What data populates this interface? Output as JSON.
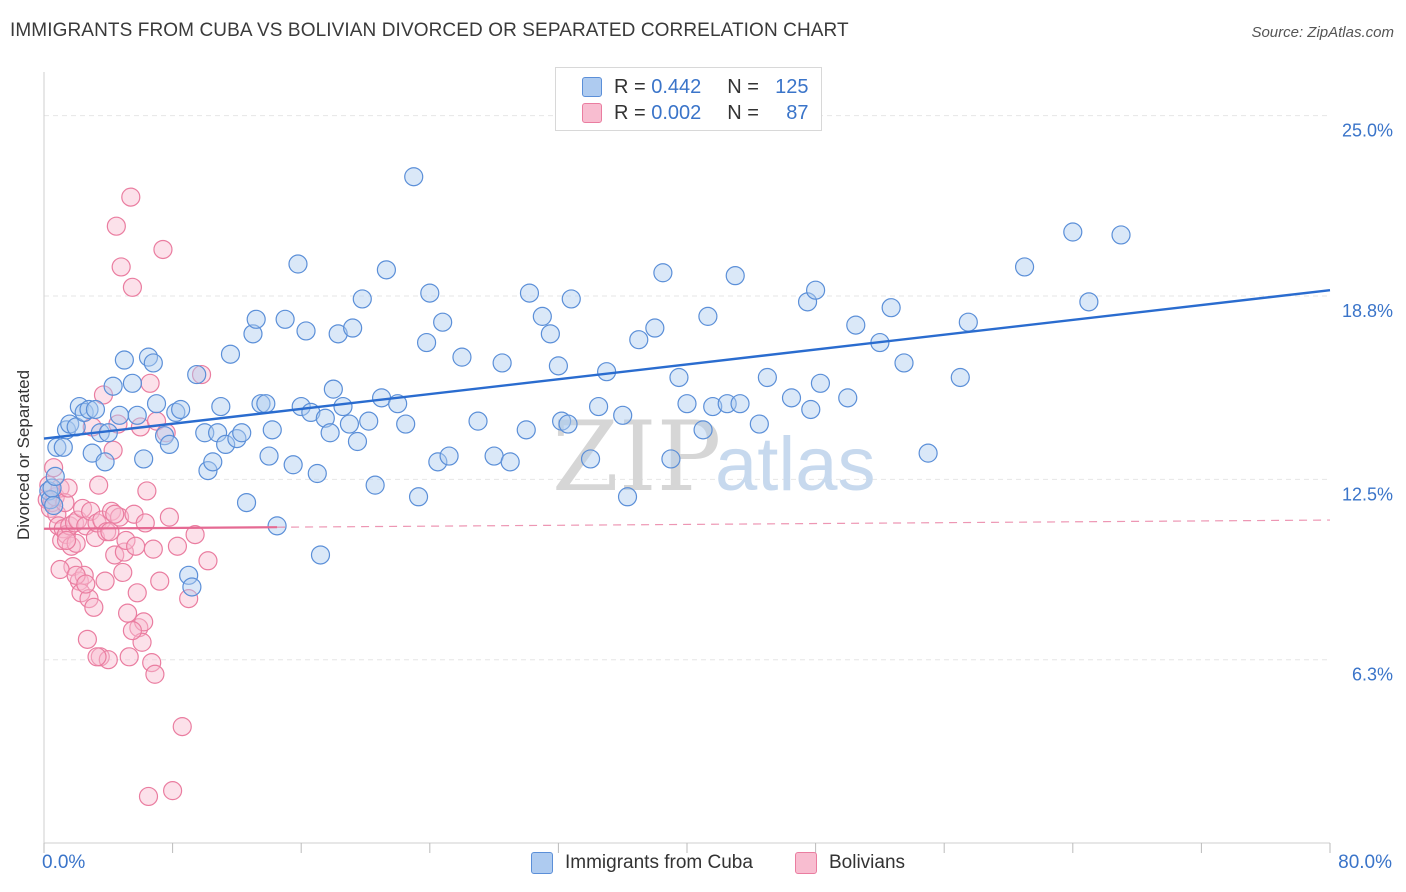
{
  "title": "IMMIGRANTS FROM CUBA VS BOLIVIAN DIVORCED OR SEPARATED CORRELATION CHART",
  "source": "Source: ZipAtlas.com",
  "watermark": {
    "zip": "ZIP",
    "atlas": "atlas"
  },
  "legend": {
    "rows": [
      {
        "r_label": "R =",
        "r_value": "0.442",
        "n_label": "N =",
        "n_value": "125"
      },
      {
        "r_label": "R =",
        "r_value": "0.002",
        "n_label": "N =",
        "n_value": "87"
      }
    ]
  },
  "colors": {
    "blue_fill": "#aecbf0",
    "blue_stroke": "#5b8fd8",
    "blue_line": "#2a6ccf",
    "pink_fill": "#f8bdd0",
    "pink_stroke": "#ea7da0",
    "pink_line": "#e56a93",
    "axis_label": "#3a74c9",
    "grid": "#e6e6e6"
  },
  "chart_data": {
    "type": "scatter",
    "title": "IMMIGRANTS FROM CUBA VS BOLIVIAN DIVORCED OR SEPARATED CORRELATION CHART",
    "xlabel": "",
    "ylabel": "Divorced or Separated",
    "xlim": [
      0,
      80
    ],
    "ylim": [
      0,
      26.5
    ],
    "x_tick_labels": [
      "0.0%",
      "80.0%"
    ],
    "y_ticks": [
      6.3,
      12.5,
      18.8,
      25.0
    ],
    "y_tick_labels": [
      "6.3%",
      "12.5%",
      "18.8%",
      "25.0%"
    ],
    "series": [
      {
        "name": "Immigrants from Cuba",
        "r": 0.442,
        "n": 125,
        "trend": {
          "x0": 0,
          "y0": 13.9,
          "x1": 80,
          "y1": 19.0,
          "dashed_from": null
        },
        "points": [
          [
            0.3,
            12.1
          ],
          [
            0.4,
            11.8
          ],
          [
            0.5,
            12.2
          ],
          [
            0.6,
            11.6
          ],
          [
            0.7,
            12.6
          ],
          [
            0.8,
            13.6
          ],
          [
            1.2,
            13.6
          ],
          [
            1.4,
            14.2
          ],
          [
            1.6,
            14.4
          ],
          [
            2.0,
            14.3
          ],
          [
            2.2,
            15.0
          ],
          [
            2.5,
            14.8
          ],
          [
            2.8,
            14.9
          ],
          [
            3.0,
            13.4
          ],
          [
            3.2,
            14.9
          ],
          [
            3.5,
            14.1
          ],
          [
            3.8,
            13.1
          ],
          [
            4.0,
            14.1
          ],
          [
            4.3,
            15.7
          ],
          [
            4.7,
            14.7
          ],
          [
            5.0,
            16.6
          ],
          [
            5.5,
            15.8
          ],
          [
            5.8,
            14.7
          ],
          [
            6.2,
            13.2
          ],
          [
            6.5,
            16.7
          ],
          [
            6.8,
            16.5
          ],
          [
            7.0,
            15.1
          ],
          [
            7.5,
            14.0
          ],
          [
            7.8,
            13.7
          ],
          [
            8.2,
            14.8
          ],
          [
            8.5,
            14.9
          ],
          [
            9.0,
            9.2
          ],
          [
            9.2,
            8.8
          ],
          [
            9.5,
            16.1
          ],
          [
            10.0,
            14.1
          ],
          [
            10.2,
            12.8
          ],
          [
            10.5,
            13.1
          ],
          [
            10.8,
            14.1
          ],
          [
            11.0,
            15.0
          ],
          [
            11.3,
            13.7
          ],
          [
            11.6,
            16.8
          ],
          [
            12.0,
            13.9
          ],
          [
            12.3,
            14.1
          ],
          [
            12.6,
            11.7
          ],
          [
            13.0,
            17.5
          ],
          [
            13.2,
            18.0
          ],
          [
            13.5,
            15.1
          ],
          [
            13.8,
            15.1
          ],
          [
            14.0,
            13.3
          ],
          [
            14.2,
            14.2
          ],
          [
            14.5,
            10.9
          ],
          [
            15.0,
            18.0
          ],
          [
            15.5,
            13.0
          ],
          [
            15.8,
            19.9
          ],
          [
            16.0,
            15.0
          ],
          [
            16.3,
            17.6
          ],
          [
            16.6,
            14.8
          ],
          [
            17.0,
            12.7
          ],
          [
            17.2,
            9.9
          ],
          [
            17.5,
            14.6
          ],
          [
            17.8,
            14.1
          ],
          [
            18.0,
            15.6
          ],
          [
            18.3,
            17.5
          ],
          [
            18.6,
            15.0
          ],
          [
            19.0,
            14.4
          ],
          [
            19.2,
            17.7
          ],
          [
            19.5,
            13.8
          ],
          [
            19.8,
            18.7
          ],
          [
            20.2,
            14.5
          ],
          [
            20.6,
            12.3
          ],
          [
            21.0,
            15.3
          ],
          [
            21.3,
            19.7
          ],
          [
            22.0,
            15.1
          ],
          [
            22.5,
            14.4
          ],
          [
            23.0,
            22.9
          ],
          [
            23.3,
            11.9
          ],
          [
            23.8,
            17.2
          ],
          [
            24.0,
            18.9
          ],
          [
            24.5,
            13.1
          ],
          [
            24.8,
            17.9
          ],
          [
            25.2,
            13.3
          ],
          [
            26.0,
            16.7
          ],
          [
            27.0,
            14.5
          ],
          [
            28.0,
            13.3
          ],
          [
            28.5,
            16.5
          ],
          [
            29.0,
            13.1
          ],
          [
            30.0,
            14.2
          ],
          [
            30.2,
            18.9
          ],
          [
            31.0,
            18.1
          ],
          [
            31.5,
            17.5
          ],
          [
            32.0,
            16.4
          ],
          [
            32.2,
            14.5
          ],
          [
            32.6,
            14.4
          ],
          [
            32.8,
            18.7
          ],
          [
            34.0,
            13.2
          ],
          [
            34.5,
            15.0
          ],
          [
            35.0,
            16.2
          ],
          [
            36.0,
            14.7
          ],
          [
            36.3,
            11.9
          ],
          [
            37.0,
            17.3
          ],
          [
            38.0,
            17.7
          ],
          [
            38.5,
            19.6
          ],
          [
            39.0,
            13.2
          ],
          [
            39.5,
            16.0
          ],
          [
            40.0,
            15.1
          ],
          [
            41.0,
            14.2
          ],
          [
            41.3,
            18.1
          ],
          [
            41.6,
            15.0
          ],
          [
            42.5,
            15.1
          ],
          [
            43.0,
            19.5
          ],
          [
            43.3,
            15.1
          ],
          [
            44.5,
            14.4
          ],
          [
            45.0,
            16.0
          ],
          [
            46.5,
            15.3
          ],
          [
            47.5,
            18.6
          ],
          [
            47.7,
            14.9
          ],
          [
            48.0,
            19.0
          ],
          [
            48.3,
            15.8
          ],
          [
            50.0,
            15.3
          ],
          [
            50.5,
            17.8
          ],
          [
            52.0,
            17.2
          ],
          [
            52.7,
            18.4
          ],
          [
            53.5,
            16.5
          ],
          [
            55.0,
            13.4
          ],
          [
            57.0,
            16.0
          ],
          [
            57.5,
            17.9
          ],
          [
            61.0,
            19.8
          ],
          [
            64.0,
            21.0
          ],
          [
            65.0,
            18.6
          ],
          [
            67.0,
            20.9
          ]
        ]
      },
      {
        "name": "Bolivians",
        "r": 0.002,
        "n": 87,
        "trend": {
          "x0": 0,
          "y0": 10.8,
          "x1": 80,
          "y1": 11.1,
          "dashed_from": 14.5
        },
        "points": [
          [
            0.2,
            11.8
          ],
          [
            0.3,
            12.3
          ],
          [
            0.4,
            11.5
          ],
          [
            0.5,
            11.7
          ],
          [
            0.6,
            12.9
          ],
          [
            0.7,
            11.9
          ],
          [
            0.8,
            11.3
          ],
          [
            0.9,
            10.9
          ],
          [
            1.0,
            12.2
          ],
          [
            1.1,
            10.4
          ],
          [
            1.2,
            10.8
          ],
          [
            1.3,
            11.7
          ],
          [
            1.4,
            10.6
          ],
          [
            1.5,
            12.2
          ],
          [
            1.6,
            10.9
          ],
          [
            1.7,
            10.2
          ],
          [
            1.8,
            9.5
          ],
          [
            1.9,
            11.0
          ],
          [
            2.0,
            10.3
          ],
          [
            2.1,
            11.1
          ],
          [
            2.2,
            9.0
          ],
          [
            2.3,
            8.6
          ],
          [
            2.4,
            11.5
          ],
          [
            2.5,
            9.2
          ],
          [
            2.6,
            10.9
          ],
          [
            2.7,
            7.0
          ],
          [
            2.8,
            8.4
          ],
          [
            2.9,
            11.4
          ],
          [
            3.0,
            14.3
          ],
          [
            3.1,
            8.1
          ],
          [
            3.2,
            10.5
          ],
          [
            3.3,
            11.0
          ],
          [
            3.4,
            12.3
          ],
          [
            3.5,
            6.4
          ],
          [
            3.6,
            11.1
          ],
          [
            3.7,
            15.4
          ],
          [
            3.8,
            9.0
          ],
          [
            3.9,
            10.7
          ],
          [
            4.0,
            6.3
          ],
          [
            4.1,
            10.7
          ],
          [
            4.2,
            11.4
          ],
          [
            4.3,
            13.5
          ],
          [
            4.4,
            9.9
          ],
          [
            4.5,
            21.2
          ],
          [
            4.6,
            14.4
          ],
          [
            4.7,
            11.2
          ],
          [
            4.8,
            19.8
          ],
          [
            4.9,
            9.3
          ],
          [
            5.0,
            10.0
          ],
          [
            5.1,
            10.4
          ],
          [
            5.2,
            7.9
          ],
          [
            5.3,
            6.4
          ],
          [
            5.4,
            22.2
          ],
          [
            5.5,
            19.1
          ],
          [
            5.6,
            11.3
          ],
          [
            5.7,
            10.2
          ],
          [
            5.8,
            8.6
          ],
          [
            5.9,
            7.4
          ],
          [
            6.0,
            14.3
          ],
          [
            6.1,
            6.9
          ],
          [
            6.2,
            7.6
          ],
          [
            6.3,
            11.0
          ],
          [
            6.4,
            12.1
          ],
          [
            6.5,
            1.6
          ],
          [
            6.6,
            15.8
          ],
          [
            6.7,
            6.2
          ],
          [
            6.8,
            10.1
          ],
          [
            6.9,
            5.8
          ],
          [
            7.0,
            14.5
          ],
          [
            7.2,
            9.0
          ],
          [
            7.4,
            20.4
          ],
          [
            7.6,
            14.1
          ],
          [
            7.8,
            11.2
          ],
          [
            8.0,
            1.8
          ],
          [
            8.3,
            10.2
          ],
          [
            8.6,
            4.0
          ],
          [
            9.0,
            8.4
          ],
          [
            9.4,
            10.6
          ],
          [
            9.8,
            16.1
          ],
          [
            10.2,
            9.7
          ],
          [
            1.0,
            9.4
          ],
          [
            1.4,
            10.4
          ],
          [
            2.0,
            9.2
          ],
          [
            2.6,
            8.9
          ],
          [
            3.3,
            6.4
          ],
          [
            4.4,
            11.3
          ],
          [
            5.5,
            7.3
          ]
        ]
      }
    ]
  },
  "bottom_legend": {
    "items": [
      "Immigrants from Cuba",
      "Bolivians"
    ]
  }
}
